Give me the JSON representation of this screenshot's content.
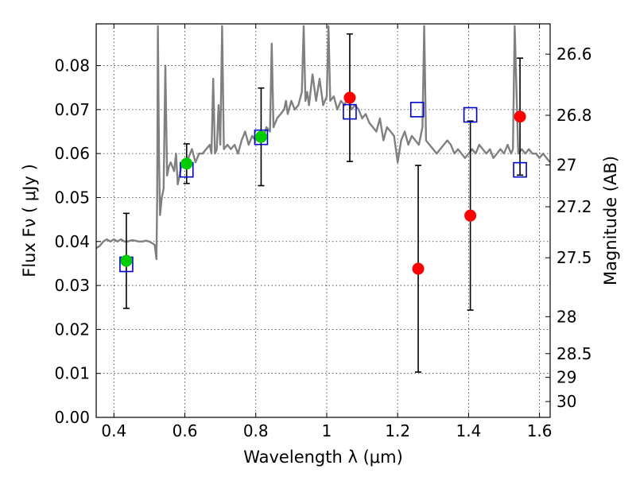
{
  "chart_data": {
    "type": "scatter",
    "title": "",
    "xlabel": "Wavelength  λ (μm)",
    "ylabel": "Flux  Fν  ( μJy )",
    "y2label": "Magnitude (AB)",
    "xlim": [
      0.35,
      1.63
    ],
    "ylim": [
      0.0,
      0.0895
    ],
    "grid": true,
    "xticks": [
      0.4,
      0.6,
      0.8,
      1.0,
      1.2,
      1.4,
      1.6
    ],
    "xtick_labels": [
      "0.4",
      "0.6",
      "0.8",
      "1",
      "1.2",
      "1.4",
      "1.6"
    ],
    "yticks": [
      0.0,
      0.01,
      0.02,
      0.03,
      0.04,
      0.05,
      0.06,
      0.07,
      0.08
    ],
    "ytick_labels": [
      "0.00",
      "0.01",
      "0.02",
      "0.03",
      "0.04",
      "0.05",
      "0.06",
      "0.07",
      "0.08"
    ],
    "y2ticks": [
      {
        "label": "26.6",
        "flux": 0.0826
      },
      {
        "label": "26.8",
        "flux": 0.0687
      },
      {
        "label": "27",
        "flux": 0.0574
      },
      {
        "label": "27.2",
        "flux": 0.0479
      },
      {
        "label": "27.5",
        "flux": 0.0363
      },
      {
        "label": "28",
        "flux": 0.0229
      },
      {
        "label": "28.5",
        "flux": 0.0145
      },
      {
        "label": "29",
        "flux": 0.0091
      },
      {
        "label": "30",
        "flux": 0.0036
      }
    ],
    "series": [
      {
        "kind": "spectrum",
        "color": "#808080",
        "x": [
          0.35,
          0.36,
          0.37,
          0.38,
          0.39,
          0.4,
          0.41,
          0.42,
          0.43,
          0.44,
          0.45,
          0.46,
          0.47,
          0.48,
          0.49,
          0.5,
          0.51,
          0.515,
          0.52,
          0.522,
          0.524,
          0.527,
          0.53,
          0.535,
          0.54,
          0.545,
          0.55,
          0.555,
          0.56,
          0.57,
          0.575,
          0.58,
          0.59,
          0.6,
          0.61,
          0.62,
          0.63,
          0.64,
          0.65,
          0.66,
          0.67,
          0.675,
          0.68,
          0.685,
          0.69,
          0.695,
          0.7,
          0.705,
          0.71,
          0.72,
          0.73,
          0.74,
          0.75,
          0.76,
          0.77,
          0.78,
          0.79,
          0.8,
          0.81,
          0.82,
          0.83,
          0.84,
          0.845,
          0.85,
          0.86,
          0.87,
          0.88,
          0.885,
          0.89,
          0.9,
          0.91,
          0.92,
          0.93,
          0.935,
          0.94,
          0.945,
          0.95,
          0.96,
          0.97,
          0.98,
          0.99,
          1.0,
          1.005,
          1.01,
          1.02,
          1.03,
          1.04,
          1.05,
          1.06,
          1.07,
          1.08,
          1.09,
          1.1,
          1.11,
          1.12,
          1.13,
          1.14,
          1.15,
          1.16,
          1.17,
          1.18,
          1.19,
          1.2,
          1.21,
          1.22,
          1.23,
          1.24,
          1.25,
          1.26,
          1.27,
          1.275,
          1.28,
          1.29,
          1.3,
          1.31,
          1.32,
          1.33,
          1.34,
          1.35,
          1.36,
          1.37,
          1.38,
          1.39,
          1.4,
          1.41,
          1.42,
          1.43,
          1.44,
          1.45,
          1.46,
          1.47,
          1.48,
          1.49,
          1.5,
          1.51,
          1.52,
          1.525,
          1.53,
          1.54,
          1.55,
          1.56,
          1.57,
          1.58,
          1.59,
          1.6,
          1.61,
          1.62,
          1.63
        ],
        "y": [
          0.0385,
          0.039,
          0.04,
          0.0405,
          0.04,
          0.0405,
          0.04,
          0.0405,
          0.04,
          0.04,
          0.0403,
          0.0402,
          0.04,
          0.04,
          0.0402,
          0.04,
          0.0395,
          0.0392,
          0.036,
          0.05,
          0.089,
          0.06,
          0.046,
          0.05,
          0.052,
          0.08,
          0.055,
          0.057,
          0.058,
          0.056,
          0.06,
          0.053,
          0.057,
          0.058,
          0.059,
          0.061,
          0.058,
          0.06,
          0.06,
          0.061,
          0.062,
          0.06,
          0.077,
          0.06,
          0.061,
          0.071,
          0.062,
          0.089,
          0.061,
          0.062,
          0.061,
          0.062,
          0.06,
          0.063,
          0.065,
          0.062,
          0.064,
          0.063,
          0.064,
          0.063,
          0.066,
          0.065,
          0.085,
          0.066,
          0.068,
          0.069,
          0.07,
          0.072,
          0.069,
          0.072,
          0.07,
          0.071,
          0.074,
          0.089,
          0.072,
          0.074,
          0.071,
          0.078,
          0.072,
          0.077,
          0.071,
          0.073,
          0.089,
          0.072,
          0.073,
          0.07,
          0.072,
          0.071,
          0.073,
          0.07,
          0.071,
          0.07,
          0.068,
          0.069,
          0.067,
          0.066,
          0.065,
          0.068,
          0.063,
          0.066,
          0.065,
          0.064,
          0.058,
          0.063,
          0.065,
          0.062,
          0.064,
          0.063,
          0.062,
          0.066,
          0.089,
          0.063,
          0.062,
          0.061,
          0.06,
          0.061,
          0.062,
          0.063,
          0.062,
          0.06,
          0.061,
          0.06,
          0.059,
          0.06,
          0.061,
          0.06,
          0.062,
          0.061,
          0.06,
          0.061,
          0.059,
          0.06,
          0.061,
          0.06,
          0.062,
          0.06,
          0.061,
          0.089,
          0.06,
          0.061,
          0.06,
          0.061,
          0.06,
          0.06,
          0.059,
          0.06,
          0.059,
          0.058
        ]
      },
      {
        "kind": "squares",
        "color": "#0000cc",
        "x": [
          0.435,
          0.605,
          0.815,
          1.065,
          1.255,
          1.405,
          1.545
        ],
        "y": [
          0.0348,
          0.0563,
          0.0637,
          0.0695,
          0.07,
          0.0688,
          0.0563
        ]
      },
      {
        "kind": "points",
        "color": "#00cc00",
        "x": [
          0.435,
          0.605,
          0.815
        ],
        "y": [
          0.0356,
          0.0577,
          0.0638
        ],
        "yerr": [
          0.0108,
          0.0045,
          0.0111
        ]
      },
      {
        "kind": "points",
        "color": "#ff0000",
        "x": [
          1.065,
          1.258,
          1.405,
          1.545
        ],
        "y": [
          0.0727,
          0.0338,
          0.0459,
          0.0684
        ],
        "yerr": [
          0.0145,
          0.0235,
          0.0215,
          0.0133
        ]
      }
    ]
  }
}
